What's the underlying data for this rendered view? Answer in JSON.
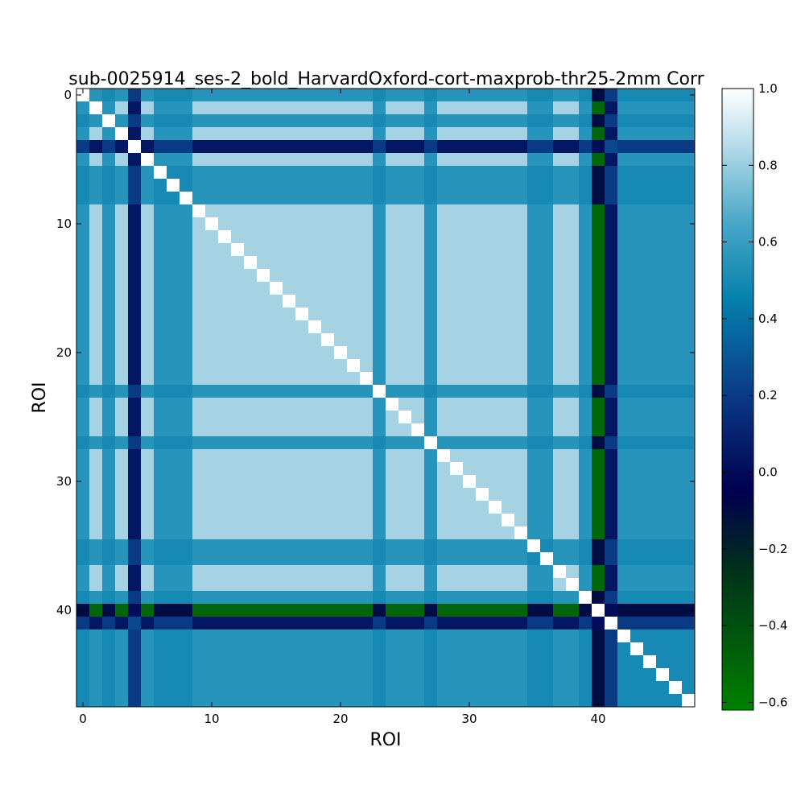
{
  "chart_data": {
    "type": "heatmap",
    "title": "sub-0025914_ses-2_bold_HarvardOxford-cort-maxprob-thr25-2mm Corr",
    "xlabel": "ROI",
    "ylabel": "ROI",
    "n_rois": 48,
    "x_ticks": [
      "0",
      "10",
      "20",
      "30",
      "40"
    ],
    "y_ticks": [
      "0",
      "10",
      "20",
      "30",
      "40"
    ],
    "colorbar": {
      "range": [
        -0.62,
        1.0
      ],
      "ticks": [
        "1.0",
        "0.8",
        "0.6",
        "0.4",
        "0.2",
        "0.0",
        "−0.2",
        "−0.4",
        "−0.6"
      ],
      "colormap_stops": [
        {
          "value": -0.62,
          "color": "#008000"
        },
        {
          "value": -0.25,
          "color": "#00301a"
        },
        {
          "value": -0.05,
          "color": "#000050"
        },
        {
          "value": 0.2,
          "color": "#0b3a85"
        },
        {
          "value": 0.45,
          "color": "#0580ad"
        },
        {
          "value": 0.65,
          "color": "#48a7c8"
        },
        {
          "value": 0.85,
          "color": "#b5dbe8"
        },
        {
          "value": 1.0,
          "color": "#ffffff"
        }
      ]
    },
    "groups": {
      "A": [
        1,
        3,
        5,
        9,
        10,
        11,
        12,
        13,
        14,
        15,
        16,
        17,
        18,
        19,
        20,
        21,
        22,
        24,
        25,
        26,
        28,
        29,
        30,
        31,
        32,
        33,
        34,
        37,
        38
      ],
      "M": [
        0,
        2,
        6,
        7,
        8,
        23,
        27,
        35,
        36,
        39,
        42,
        43,
        44,
        45,
        46,
        47
      ],
      "L": [
        4,
        41
      ],
      "N": [
        40
      ]
    },
    "group_correlations": {
      "AA": 0.82,
      "AM": 0.55,
      "AL": 0.05,
      "AN": -0.5,
      "MM": 0.5,
      "ML": 0.2,
      "MN": -0.1,
      "LL": 0.25,
      "LN": 0.0,
      "NN": 1.0
    },
    "diagonal_value": 1.0
  }
}
